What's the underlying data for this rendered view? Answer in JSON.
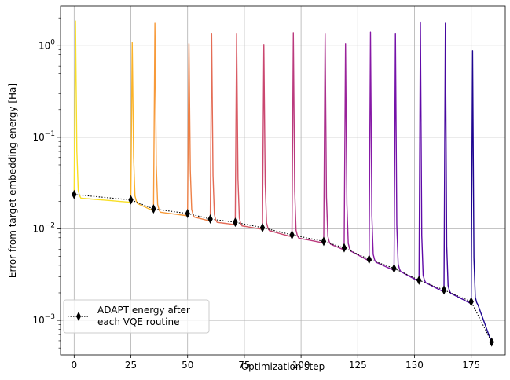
{
  "chart_data": {
    "type": "line",
    "xlabel": "Optimization step",
    "ylabel": "Error from target embedding energy [Ha]",
    "xlim": [
      -6,
      190
    ],
    "ylim": [
      0.00042,
      2.7
    ],
    "yscale": "log",
    "grid": true,
    "legend_position": "lower-left",
    "x_ticks": [
      {
        "value": 0,
        "label": "0"
      },
      {
        "value": 25,
        "label": "25"
      },
      {
        "value": 50,
        "label": "50"
      },
      {
        "value": 75,
        "label": "75"
      },
      {
        "value": 100,
        "label": "100"
      },
      {
        "value": 125,
        "label": "125"
      },
      {
        "value": 150,
        "label": "150"
      },
      {
        "value": 175,
        "label": "175"
      }
    ],
    "y_ticks": [
      {
        "value": 0.001,
        "base": "10",
        "exp": "−3"
      },
      {
        "value": 0.01,
        "base": "10",
        "exp": "−2"
      },
      {
        "value": 0.1,
        "base": "10",
        "exp": "−1"
      },
      {
        "value": 1,
        "base": "10",
        "exp": "0"
      }
    ],
    "segments": [
      {
        "color": "#f8df25",
        "start": 0,
        "end": 25,
        "peak": 1.85,
        "from": 0.0235,
        "to": 0.0205
      },
      {
        "color": "#fbb42a",
        "start": 25,
        "end": 35,
        "peak": 1.08,
        "from": 0.0205,
        "to": 0.0165
      },
      {
        "color": "#f79a3a",
        "start": 35,
        "end": 50,
        "peak": 1.78,
        "from": 0.0165,
        "to": 0.0146
      },
      {
        "color": "#ee8046",
        "start": 50,
        "end": 60,
        "peak": 1.05,
        "from": 0.0146,
        "to": 0.0128
      },
      {
        "color": "#e46c55",
        "start": 60,
        "end": 71,
        "peak": 1.36,
        "from": 0.0128,
        "to": 0.0117
      },
      {
        "color": "#d85a63",
        "start": 71,
        "end": 83,
        "peak": 1.36,
        "from": 0.0117,
        "to": 0.0104
      },
      {
        "color": "#ca4770",
        "start": 83,
        "end": 96,
        "peak": 1.03,
        "from": 0.0104,
        "to": 0.0086
      },
      {
        "color": "#bb3a7e",
        "start": 96,
        "end": 110,
        "peak": 1.38,
        "from": 0.0086,
        "to": 0.0074
      },
      {
        "color": "#aa2e8b",
        "start": 110,
        "end": 119,
        "peak": 1.36,
        "from": 0.0074,
        "to": 0.0062
      },
      {
        "color": "#9a229a",
        "start": 119,
        "end": 130,
        "peak": 1.05,
        "from": 0.0062,
        "to": 0.0047
      },
      {
        "color": "#8618a6",
        "start": 130,
        "end": 141,
        "peak": 1.4,
        "from": 0.0047,
        "to": 0.0037
      },
      {
        "color": "#7412a8",
        "start": 141,
        "end": 152,
        "peak": 1.36,
        "from": 0.0037,
        "to": 0.0028
      },
      {
        "color": "#5f0aa8",
        "start": 152,
        "end": 163,
        "peak": 1.8,
        "from": 0.0028,
        "to": 0.00215
      },
      {
        "color": "#45069e",
        "start": 163,
        "end": 175,
        "peak": 1.78,
        "from": 0.00215,
        "to": 0.0016
      },
      {
        "color": "#1e0691",
        "start": 175,
        "end": 184,
        "peak": 0.88,
        "from": 0.0016,
        "to": 0.0006
      }
    ],
    "adapt_series": {
      "name": "ADAPT energy after\neach VQE routine",
      "name_lines": [
        "ADAPT energy after",
        "each VQE routine"
      ],
      "color": "#000000",
      "x": [
        0,
        25,
        35,
        50,
        60,
        71,
        83,
        96,
        110,
        119,
        130,
        141,
        152,
        163,
        175,
        184
      ],
      "y": [
        0.0237,
        0.0207,
        0.0165,
        0.0147,
        0.0128,
        0.0118,
        0.0103,
        0.0086,
        0.0073,
        0.0062,
        0.00465,
        0.0037,
        0.00275,
        0.00215,
        0.0016,
        0.00058
      ]
    }
  }
}
